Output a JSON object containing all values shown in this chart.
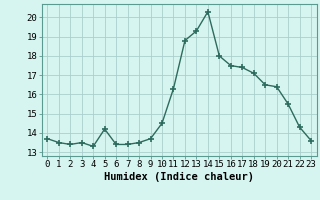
{
  "x": [
    0,
    1,
    2,
    3,
    4,
    5,
    6,
    7,
    8,
    9,
    10,
    11,
    12,
    13,
    14,
    15,
    16,
    17,
    18,
    19,
    20,
    21,
    22,
    23
  ],
  "y": [
    13.7,
    13.5,
    13.4,
    13.5,
    13.3,
    14.2,
    13.4,
    13.4,
    13.5,
    13.7,
    14.5,
    16.3,
    18.8,
    19.3,
    20.3,
    18.0,
    17.5,
    17.4,
    17.1,
    16.5,
    16.4,
    15.5,
    14.3,
    13.6
  ],
  "line_color": "#2d6b5e",
  "marker": "+",
  "markersize": 4,
  "markeredgewidth": 1.2,
  "linewidth": 1.0,
  "bg_color": "#d6f5f0",
  "grid_color": "#aacfcc",
  "xlabel": "Humidex (Indice chaleur)",
  "xlabel_fontsize": 7.5,
  "ylabel_ticks": [
    13,
    14,
    15,
    16,
    17,
    18,
    19,
    20
  ],
  "xlim": [
    -0.5,
    23.5
  ],
  "ylim": [
    12.8,
    20.7
  ],
  "xtick_labels": [
    "0",
    "1",
    "2",
    "3",
    "4",
    "5",
    "6",
    "7",
    "8",
    "9",
    "10",
    "11",
    "12",
    "13",
    "14",
    "15",
    "16",
    "17",
    "18",
    "19",
    "20",
    "21",
    "22",
    "23"
  ],
  "tick_fontsize": 6.5
}
